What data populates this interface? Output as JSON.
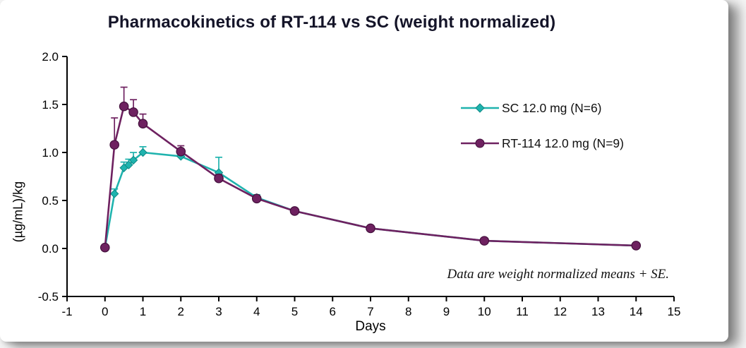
{
  "chart_data": {
    "type": "line",
    "title": "Pharmacokinetics of RT-114 vs SC (weight normalized)",
    "xlabel": "Days",
    "ylabel": "(µg/mL)/kg",
    "annotation": "Data are weight normalized means + SE.",
    "xlim": [
      -1,
      15
    ],
    "ylim": [
      -0.5,
      2.0
    ],
    "xticks": [
      -1,
      0,
      1,
      2,
      3,
      4,
      5,
      6,
      7,
      8,
      9,
      10,
      11,
      12,
      13,
      14,
      15
    ],
    "yticks": [
      -0.5,
      0.0,
      0.5,
      1.0,
      1.5,
      2.0
    ],
    "grid": false,
    "legend_position": "inside-upper-right",
    "series": [
      {
        "name": "SC 12.0 mg (N=6)",
        "color": "#1fb3ae",
        "marker_edge": "#0d8a85",
        "marker": "diamond",
        "x": [
          0,
          0.25,
          0.5,
          0.625,
          0.75,
          1,
          2,
          3,
          4,
          5,
          7,
          10,
          14
        ],
        "y": [
          0.01,
          0.57,
          0.84,
          0.87,
          0.92,
          1.0,
          0.96,
          0.79,
          0.53,
          0.39,
          0.21,
          0.08,
          0.03
        ],
        "se": [
          0,
          0.05,
          0.06,
          0.06,
          0.08,
          0.06,
          0.04,
          0.16,
          0.03,
          0.02,
          0.02,
          0.01,
          0.01
        ]
      },
      {
        "name": "RT-114 12.0 mg (N=9)",
        "color": "#6e2160",
        "marker_edge": "#43103c",
        "marker": "circle",
        "x": [
          0,
          0.25,
          0.5,
          0.75,
          1,
          2,
          3,
          4,
          5,
          7,
          10,
          14
        ],
        "y": [
          0.01,
          1.08,
          1.48,
          1.42,
          1.3,
          1.01,
          0.73,
          0.52,
          0.39,
          0.21,
          0.08,
          0.03
        ],
        "se": [
          0,
          0.28,
          0.2,
          0.13,
          0.1,
          0.06,
          0.04,
          0.03,
          0.02,
          0.02,
          0.01,
          0.01
        ]
      }
    ]
  }
}
